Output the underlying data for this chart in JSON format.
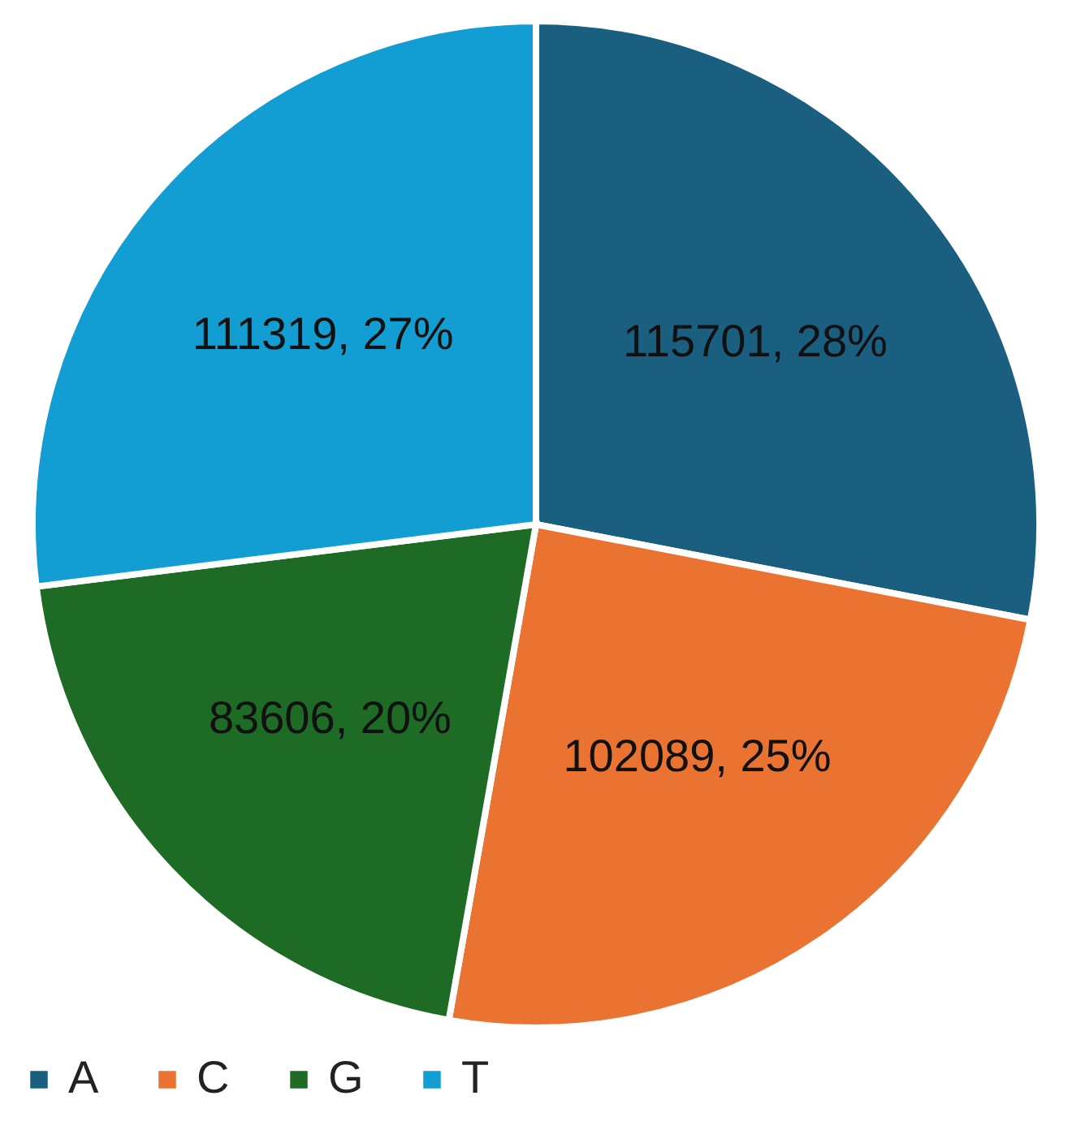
{
  "chart_data": {
    "type": "pie",
    "categories": [
      "A",
      "C",
      "G",
      "T"
    ],
    "values": [
      115701,
      102089,
      83606,
      111319
    ],
    "colors": [
      "#1a5f80",
      "#eb7332",
      "#1e6b26",
      "#129ed2"
    ],
    "value_labels": [
      "115701, 28%",
      "102089, 25%",
      "83606, 20%",
      "111319, 27%"
    ],
    "legend": "bottom"
  }
}
